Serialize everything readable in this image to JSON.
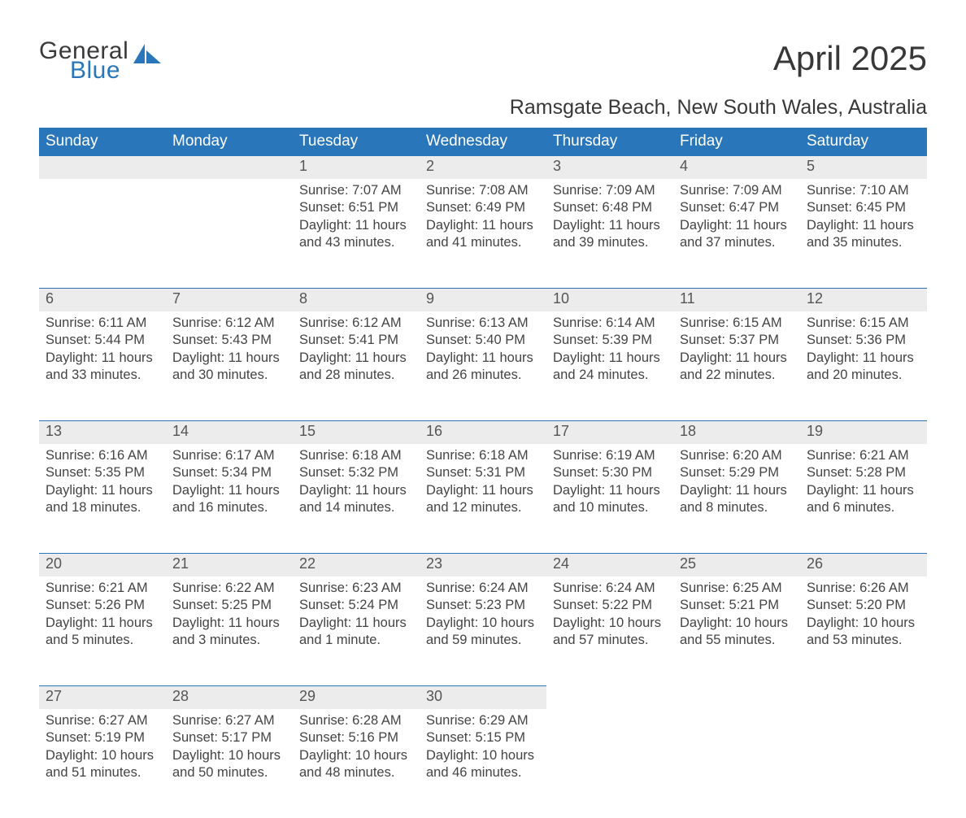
{
  "logo": {
    "text1": "General",
    "text2": "Blue"
  },
  "title": "April 2025",
  "subtitle": "Ramsgate Beach, New South Wales, Australia",
  "colors": {
    "header_bg": "#2a76bb",
    "header_text": "#ffffff",
    "daynum_bg": "#ececec",
    "daynum_border": "#2a76bb",
    "body_text": "#444444",
    "daynum_text": "#555555",
    "page_bg": "#ffffff"
  },
  "weekdays": [
    "Sunday",
    "Monday",
    "Tuesday",
    "Wednesday",
    "Thursday",
    "Friday",
    "Saturday"
  ],
  "weeks": [
    [
      null,
      null,
      {
        "n": "1",
        "sr": "7:07 AM",
        "ss": "6:51 PM",
        "dl": "11 hours and 43 minutes."
      },
      {
        "n": "2",
        "sr": "7:08 AM",
        "ss": "6:49 PM",
        "dl": "11 hours and 41 minutes."
      },
      {
        "n": "3",
        "sr": "7:09 AM",
        "ss": "6:48 PM",
        "dl": "11 hours and 39 minutes."
      },
      {
        "n": "4",
        "sr": "7:09 AM",
        "ss": "6:47 PM",
        "dl": "11 hours and 37 minutes."
      },
      {
        "n": "5",
        "sr": "7:10 AM",
        "ss": "6:45 PM",
        "dl": "11 hours and 35 minutes."
      }
    ],
    [
      {
        "n": "6",
        "sr": "6:11 AM",
        "ss": "5:44 PM",
        "dl": "11 hours and 33 minutes."
      },
      {
        "n": "7",
        "sr": "6:12 AM",
        "ss": "5:43 PM",
        "dl": "11 hours and 30 minutes."
      },
      {
        "n": "8",
        "sr": "6:12 AM",
        "ss": "5:41 PM",
        "dl": "11 hours and 28 minutes."
      },
      {
        "n": "9",
        "sr": "6:13 AM",
        "ss": "5:40 PM",
        "dl": "11 hours and 26 minutes."
      },
      {
        "n": "10",
        "sr": "6:14 AM",
        "ss": "5:39 PM",
        "dl": "11 hours and 24 minutes."
      },
      {
        "n": "11",
        "sr": "6:15 AM",
        "ss": "5:37 PM",
        "dl": "11 hours and 22 minutes."
      },
      {
        "n": "12",
        "sr": "6:15 AM",
        "ss": "5:36 PM",
        "dl": "11 hours and 20 minutes."
      }
    ],
    [
      {
        "n": "13",
        "sr": "6:16 AM",
        "ss": "5:35 PM",
        "dl": "11 hours and 18 minutes."
      },
      {
        "n": "14",
        "sr": "6:17 AM",
        "ss": "5:34 PM",
        "dl": "11 hours and 16 minutes."
      },
      {
        "n": "15",
        "sr": "6:18 AM",
        "ss": "5:32 PM",
        "dl": "11 hours and 14 minutes."
      },
      {
        "n": "16",
        "sr": "6:18 AM",
        "ss": "5:31 PM",
        "dl": "11 hours and 12 minutes."
      },
      {
        "n": "17",
        "sr": "6:19 AM",
        "ss": "5:30 PM",
        "dl": "11 hours and 10 minutes."
      },
      {
        "n": "18",
        "sr": "6:20 AM",
        "ss": "5:29 PM",
        "dl": "11 hours and 8 minutes."
      },
      {
        "n": "19",
        "sr": "6:21 AM",
        "ss": "5:28 PM",
        "dl": "11 hours and 6 minutes."
      }
    ],
    [
      {
        "n": "20",
        "sr": "6:21 AM",
        "ss": "5:26 PM",
        "dl": "11 hours and 5 minutes."
      },
      {
        "n": "21",
        "sr": "6:22 AM",
        "ss": "5:25 PM",
        "dl": "11 hours and 3 minutes."
      },
      {
        "n": "22",
        "sr": "6:23 AM",
        "ss": "5:24 PM",
        "dl": "11 hours and 1 minute."
      },
      {
        "n": "23",
        "sr": "6:24 AM",
        "ss": "5:23 PM",
        "dl": "10 hours and 59 minutes."
      },
      {
        "n": "24",
        "sr": "6:24 AM",
        "ss": "5:22 PM",
        "dl": "10 hours and 57 minutes."
      },
      {
        "n": "25",
        "sr": "6:25 AM",
        "ss": "5:21 PM",
        "dl": "10 hours and 55 minutes."
      },
      {
        "n": "26",
        "sr": "6:26 AM",
        "ss": "5:20 PM",
        "dl": "10 hours and 53 minutes."
      }
    ],
    [
      {
        "n": "27",
        "sr": "6:27 AM",
        "ss": "5:19 PM",
        "dl": "10 hours and 51 minutes."
      },
      {
        "n": "28",
        "sr": "6:27 AM",
        "ss": "5:17 PM",
        "dl": "10 hours and 50 minutes."
      },
      {
        "n": "29",
        "sr": "6:28 AM",
        "ss": "5:16 PM",
        "dl": "10 hours and 48 minutes."
      },
      {
        "n": "30",
        "sr": "6:29 AM",
        "ss": "5:15 PM",
        "dl": "10 hours and 46 minutes."
      },
      null,
      null,
      null
    ]
  ],
  "labels": {
    "sunrise": "Sunrise: ",
    "sunset": "Sunset: ",
    "daylight": "Daylight: "
  }
}
